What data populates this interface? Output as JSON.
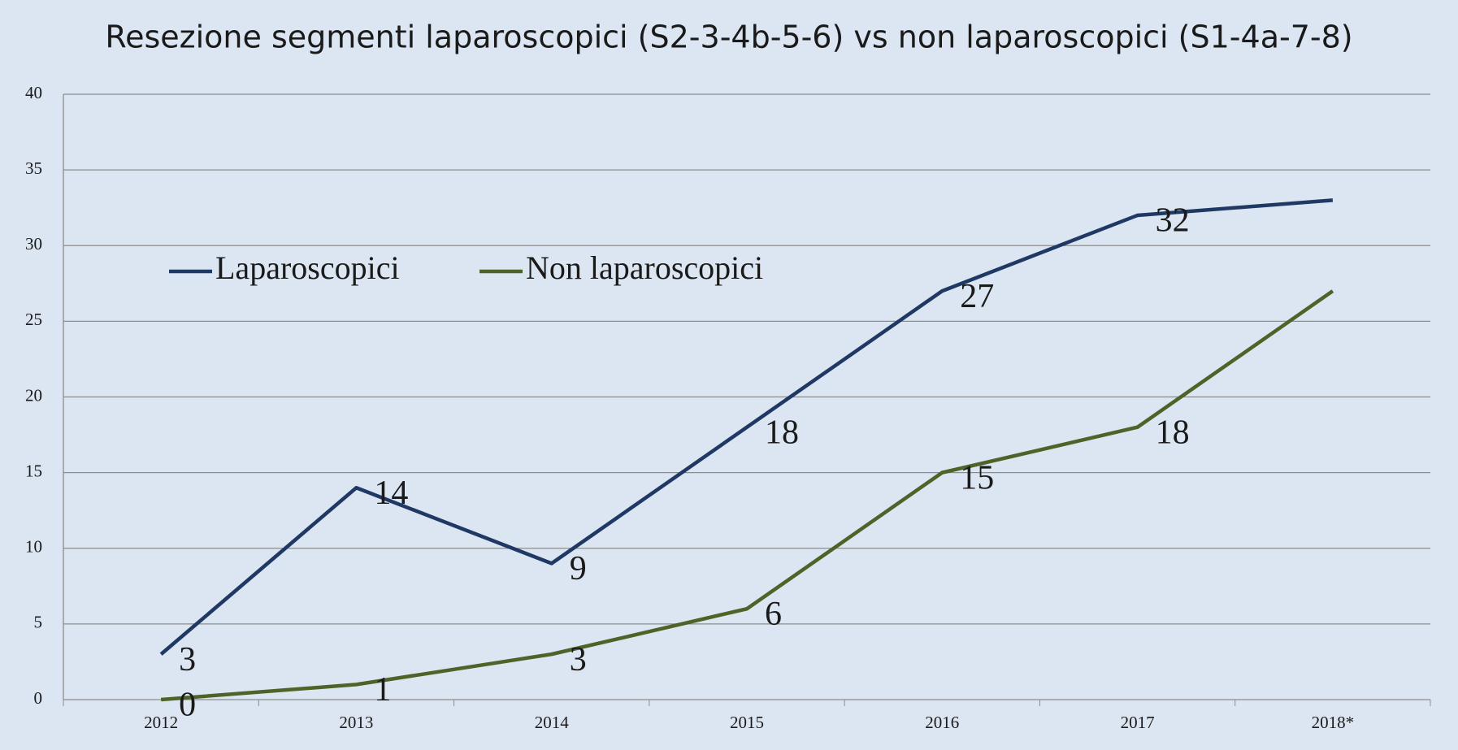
{
  "chart_data": {
    "type": "line",
    "title": "Resezione segmenti laparoscopici (S2-3-4b-5-6) vs non laparoscopici (S1-4a-7-8)",
    "categories": [
      "2012",
      "2013",
      "2014",
      "2015",
      "2016",
      "2017",
      "2018*"
    ],
    "series": [
      {
        "name": "Laparoscopici",
        "color": "#1f3864",
        "values": [
          3,
          14,
          9,
          18,
          27,
          32,
          33
        ],
        "value_labels": [
          3,
          14,
          9,
          18,
          27,
          32,
          null
        ]
      },
      {
        "name": "Non laparoscopici",
        "color": "#4f6228",
        "values": [
          0,
          1,
          3,
          6,
          15,
          18,
          27
        ],
        "value_labels": [
          0,
          1,
          3,
          6,
          15,
          18,
          null
        ]
      }
    ],
    "ylim": [
      0,
      40
    ],
    "yticks": [
      0,
      5,
      10,
      15,
      20,
      25,
      30,
      35,
      40
    ],
    "grid": true
  }
}
